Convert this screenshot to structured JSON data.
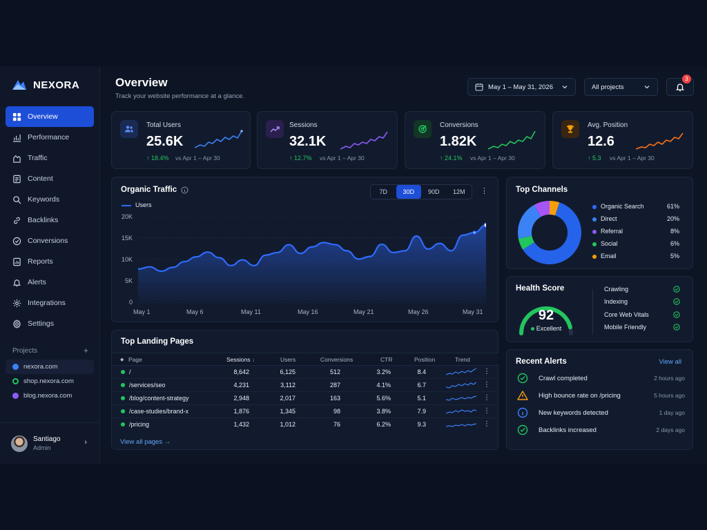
{
  "app": {
    "brand": "NEXORA"
  },
  "sidebar": {
    "items": [
      {
        "label": "Overview",
        "icon": "grid-icon",
        "active": true
      },
      {
        "label": "Performance",
        "icon": "bar-chart-icon"
      },
      {
        "label": "Traffic",
        "icon": "traffic-icon"
      },
      {
        "label": "Content",
        "icon": "document-icon"
      },
      {
        "label": "Keywords",
        "icon": "search-icon"
      },
      {
        "label": "Backlinks",
        "icon": "link-icon"
      },
      {
        "label": "Conversions",
        "icon": "check-circle-icon"
      },
      {
        "label": "Reports",
        "icon": "report-icon"
      },
      {
        "label": "Alerts",
        "icon": "bell-icon"
      },
      {
        "label": "Integrations",
        "icon": "plug-icon"
      },
      {
        "label": "Settings",
        "icon": "gear-icon"
      }
    ],
    "projects_label": "Projects",
    "projects_add": "+",
    "projects": [
      {
        "label": "nexora.com",
        "color": "#3b82f6"
      },
      {
        "label": "shop.nexora.com",
        "color": "#22c55e"
      },
      {
        "label": "blog.nexora.com",
        "color": "#8b5cf6"
      }
    ],
    "user": {
      "name": "Santiago",
      "role": "Admin"
    }
  },
  "header": {
    "title": "Overview",
    "subtitle": "Track your website performance at a glance.",
    "date_range": "May 1 – May 31, 2026",
    "project_select": "All projects",
    "notifications_count": "3"
  },
  "kpis": [
    {
      "label": "Total Users",
      "value": "25.6K",
      "delta": "18.4%",
      "vs": "vs Apr 1 – Apr 30",
      "color": "#3b82f6",
      "icon": "users-icon"
    },
    {
      "label": "Sessions",
      "value": "32.1K",
      "delta": "12.7%",
      "vs": "vs Apr 1 – Apr 30",
      "color": "#8b5cf6",
      "icon": "trend-icon"
    },
    {
      "label": "Conversions",
      "value": "1.82K",
      "delta": "24.1%",
      "vs": "vs Apr 1 – Apr 30",
      "color": "#22c55e",
      "icon": "target-icon"
    },
    {
      "label": "Avg. Position",
      "value": "12.6",
      "delta": "5.3",
      "vs": "vs Apr 1 – Apr 30",
      "color": "#f97316",
      "icon": "trophy-icon"
    }
  ],
  "organic": {
    "title": "Organic Traffic",
    "ranges": [
      "7D",
      "30D",
      "90D",
      "12M"
    ],
    "active_range": "30D"
  },
  "chart_data": {
    "type": "area",
    "title": "Organic Traffic",
    "series": [
      {
        "name": "Users",
        "color": "#2f6bff"
      }
    ],
    "x_ticks": [
      "May 1",
      "May 6",
      "May 11",
      "May 16",
      "May 21",
      "May 26",
      "May 31"
    ],
    "y_ticks": [
      "20K",
      "15K",
      "10K",
      "5K",
      "0"
    ],
    "ylim": [
      0,
      20000
    ],
    "x": [
      1,
      2,
      3,
      4,
      5,
      6,
      7,
      8,
      9,
      10,
      11,
      12,
      13,
      14,
      15,
      16,
      17,
      18,
      19,
      20,
      21,
      22,
      23,
      24,
      25,
      26,
      27,
      28,
      29,
      30,
      31
    ],
    "values": [
      7800,
      8300,
      7300,
      8200,
      9500,
      10600,
      11700,
      10400,
      8600,
      9900,
      8600,
      11000,
      11600,
      13400,
      11400,
      12900,
      13900,
      13400,
      12000,
      10100,
      10700,
      13500,
      11600,
      12000,
      15400,
      12400,
      13700,
      12000,
      15600,
      16200,
      17900
    ],
    "grid": true
  },
  "landing": {
    "title": "Top Landing Pages",
    "columns": [
      "Page",
      "Sessions",
      "Users",
      "Conversions",
      "CTR",
      "Position",
      "Trend"
    ],
    "rows": [
      {
        "page": "/",
        "sessions": "8,642",
        "users": "6,125",
        "conversions": "512",
        "ctr": "3.2%",
        "position": "8.4"
      },
      {
        "page": "/services/seo",
        "sessions": "4,231",
        "users": "3,112",
        "conversions": "287",
        "ctr": "4.1%",
        "position": "6.7"
      },
      {
        "page": "/blog/content-strategy",
        "sessions": "2,948",
        "users": "2,017",
        "conversions": "163",
        "ctr": "5.6%",
        "position": "5.1"
      },
      {
        "page": "/case-studies/brand-x",
        "sessions": "1,876",
        "users": "1,345",
        "conversions": "98",
        "ctr": "3.8%",
        "position": "7.9"
      },
      {
        "page": "/pricing",
        "sessions": "1,432",
        "users": "1,012",
        "conversions": "76",
        "ctr": "6.2%",
        "position": "9.3"
      }
    ],
    "view_all": "View all pages"
  },
  "channels": {
    "title": "Top Channels",
    "items": [
      {
        "label": "Organic Search",
        "pct": "61%",
        "value": 61,
        "color": "#2f6bff"
      },
      {
        "label": "Direct",
        "pct": "20%",
        "value": 20,
        "color": "#3b82f6"
      },
      {
        "label": "Referral",
        "pct": "8%",
        "value": 8,
        "color": "#8b5cf6"
      },
      {
        "label": "Social",
        "pct": "6%",
        "value": 6,
        "color": "#22c55e"
      },
      {
        "label": "Email",
        "pct": "5%",
        "value": 5,
        "color": "#f59e0b"
      }
    ]
  },
  "health": {
    "title": "Health Score",
    "score": "92",
    "score_value": 92,
    "status": "Excellent",
    "checks": [
      "Crawling",
      "Indexing",
      "Core Web Vitals",
      "Mobile Friendly"
    ]
  },
  "alerts": {
    "title": "Recent Alerts",
    "view_all": "View all",
    "items": [
      {
        "text": "Crawl completed",
        "time": "2 hours ago",
        "kind": "success"
      },
      {
        "text": "High bounce rate on /pricing",
        "time": "5 hours ago",
        "kind": "warning"
      },
      {
        "text": "New keywords detected",
        "time": "1 day ago",
        "kind": "info"
      },
      {
        "text": "Backlinks increased",
        "time": "2 days ago",
        "kind": "success"
      }
    ]
  }
}
